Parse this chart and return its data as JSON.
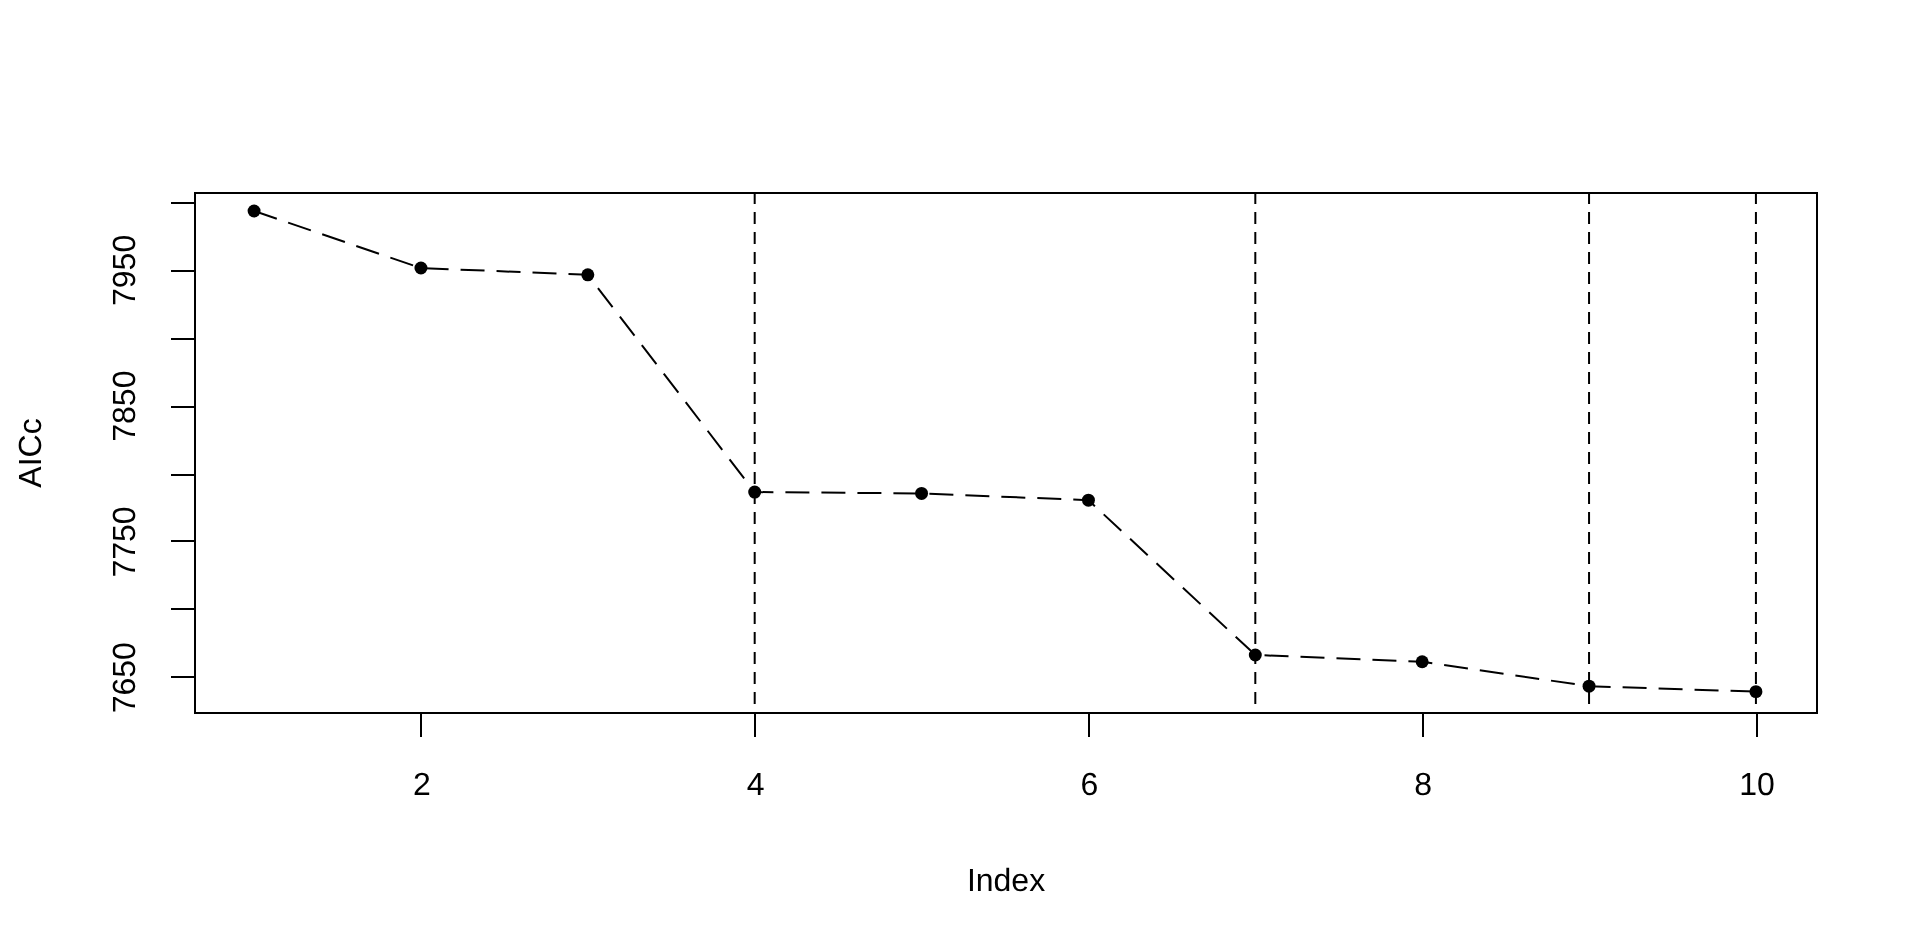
{
  "chart_data": {
    "type": "line",
    "xlabel": "Index",
    "ylabel": "AICc",
    "x": [
      1,
      2,
      3,
      4,
      5,
      6,
      7,
      8,
      9,
      10
    ],
    "series": [
      {
        "color": "#000000",
        "values": [
          7993,
          7951,
          7946,
          7786,
          7785,
          7780,
          7666,
          7661,
          7643,
          7639
        ]
      }
    ],
    "xlim": [
      0.64,
      10.36
    ],
    "ylim": [
      7624,
      8007
    ],
    "xticks": [
      2,
      4,
      6,
      8,
      10
    ],
    "yticks": [
      7650,
      {
        "value": 7700,
        "label": null
      },
      7750,
      {
        "value": 7800,
        "label": null
      },
      7850,
      {
        "value": 7900,
        "label": null
      },
      7950,
      {
        "value": 8000,
        "label": null
      }
    ],
    "marker": "circle",
    "line_style": "dashed",
    "ref_lines": [
      {
        "axis": "x",
        "value": 4,
        "color": "#000000",
        "line_style": "dashed"
      },
      {
        "axis": "x",
        "value": 7,
        "color": "#000000",
        "line_style": "dashed"
      },
      {
        "axis": "x",
        "value": 9,
        "color": "#000000",
        "line_style": "dashed"
      },
      {
        "axis": "x",
        "value": 10,
        "color": "#000000",
        "line_style": "dashed"
      }
    ]
  }
}
